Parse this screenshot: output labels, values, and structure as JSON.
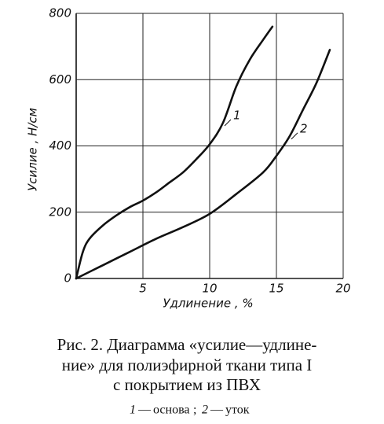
{
  "chart_data": {
    "type": "line",
    "xlabel": "Удлинение , %",
    "ylabel": "Усилие , Н/см",
    "xlim": [
      0,
      20
    ],
    "xticks": [
      5,
      10,
      15,
      20
    ],
    "ylim": [
      0,
      800
    ],
    "yticks": [
      0,
      200,
      400,
      600,
      800
    ],
    "grid": true,
    "series": [
      {
        "name": "основа",
        "label": "1",
        "color": "#111111",
        "x": [
          0,
          0.5,
          1,
          2,
          3,
          4,
          5,
          6,
          7,
          8,
          9,
          10,
          11,
          12,
          13,
          14,
          14.7
        ],
        "y": [
          0,
          80,
          120,
          160,
          190,
          215,
          235,
          260,
          290,
          320,
          360,
          405,
          470,
          580,
          660,
          720,
          760
        ]
      },
      {
        "name": "уток",
        "label": "2",
        "color": "#111111",
        "x": [
          0,
          2,
          4,
          6,
          8,
          10,
          12,
          14,
          15,
          16,
          17,
          18,
          19
        ],
        "y": [
          0,
          40,
          80,
          120,
          155,
          195,
          255,
          320,
          370,
          430,
          510,
          590,
          690
        ]
      }
    ],
    "caption": [
      "Рис. 2. Диаграмма «усилие—удлине-",
      "ние» для полиэфирной ткани типа I",
      "с покрытием из ПВХ"
    ]
  }
}
